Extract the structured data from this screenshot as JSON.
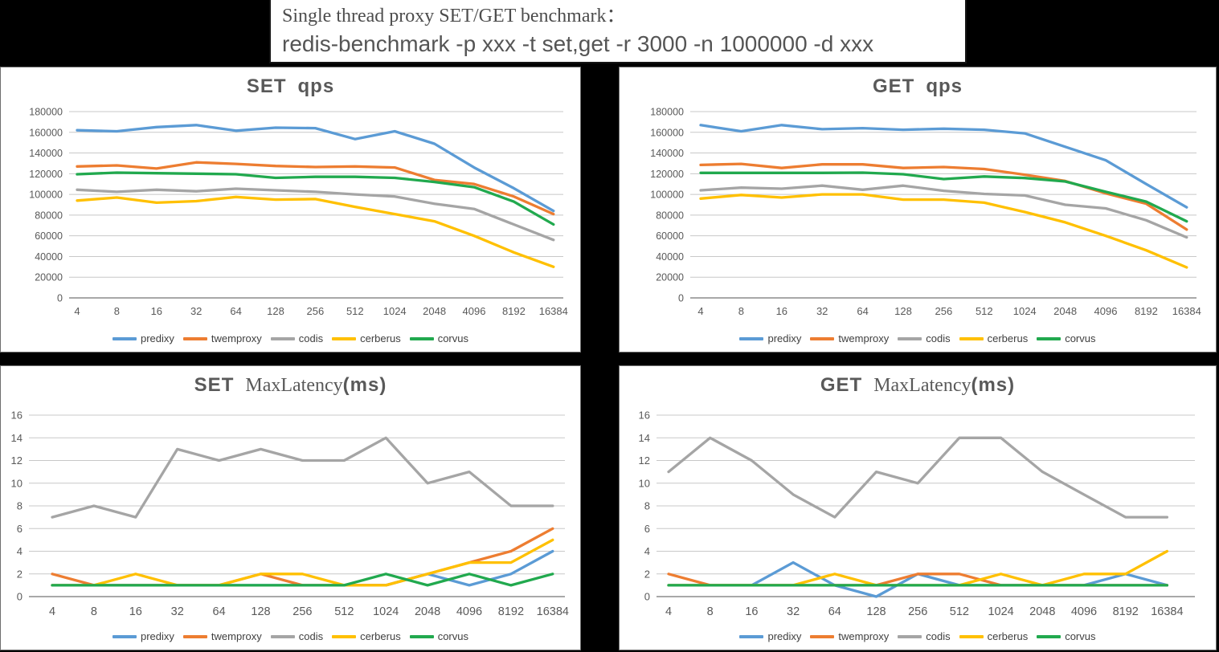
{
  "title_box": {
    "line1": "Single thread proxy SET/GET benchmark：",
    "line2": "redis-benchmark -p xxx -t set,get -r 3000 -n 1000000 -d xxx"
  },
  "colors": {
    "predixy": "#5B9BD5",
    "twemproxy": "#ED7D31",
    "codis": "#A5A5A5",
    "cerberus": "#FFC000",
    "corvus": "#21A94E",
    "grid": "#c8c8c8",
    "axis": "#8c8c8c",
    "label": "#595959"
  },
  "chart_data": [
    {
      "id": "set-qps",
      "type": "line",
      "title_prefix": "SET",
      "title_main": "qps",
      "title_main_serif": false,
      "title_suffix": "",
      "categories": [
        "4",
        "8",
        "16",
        "32",
        "64",
        "128",
        "256",
        "512",
        "1024",
        "2048",
        "4096",
        "8192",
        "16384"
      ],
      "ylim": [
        0,
        180000
      ],
      "ytick_step": 20000,
      "grid": true,
      "legend_position": "bottom",
      "series": [
        {
          "name": "predixy",
          "color": "#5B9BD5",
          "values": [
            162000,
            161000,
            165000,
            167000,
            161500,
            164500,
            164000,
            153500,
            161000,
            149000,
            126000,
            106000,
            84000
          ]
        },
        {
          "name": "twemproxy",
          "color": "#ED7D31",
          "values": [
            127000,
            128000,
            125000,
            131000,
            129500,
            127500,
            126500,
            127000,
            126000,
            114000,
            110000,
            98000,
            81000
          ]
        },
        {
          "name": "codis",
          "color": "#A5A5A5",
          "values": [
            104500,
            102500,
            104500,
            103000,
            105500,
            104000,
            102500,
            100000,
            98000,
            91000,
            86000,
            71000,
            56000
          ]
        },
        {
          "name": "cerberus",
          "color": "#FFC000",
          "values": [
            94000,
            97000,
            92000,
            93500,
            97500,
            95000,
            95500,
            88000,
            81000,
            74000,
            60000,
            44000,
            30000
          ]
        },
        {
          "name": "corvus",
          "color": "#21A94E",
          "values": [
            119500,
            121000,
            120500,
            120000,
            119500,
            116000,
            117000,
            117000,
            116000,
            112000,
            107000,
            93000,
            71000
          ]
        }
      ]
    },
    {
      "id": "get-qps",
      "type": "line",
      "title_prefix": "GET",
      "title_main": "qps",
      "title_main_serif": false,
      "title_suffix": "",
      "categories": [
        "4",
        "8",
        "16",
        "32",
        "64",
        "128",
        "256",
        "512",
        "1024",
        "2048",
        "4096",
        "8192",
        "16384"
      ],
      "ylim": [
        0,
        180000
      ],
      "ytick_step": 20000,
      "grid": true,
      "legend_position": "bottom",
      "series": [
        {
          "name": "predixy",
          "color": "#5B9BD5",
          "values": [
            167000,
            161000,
            167000,
            163000,
            164000,
            162500,
            163500,
            162500,
            159000,
            146000,
            133000,
            110000,
            87500
          ]
        },
        {
          "name": "twemproxy",
          "color": "#ED7D31",
          "values": [
            128500,
            129500,
            125500,
            129000,
            129000,
            125500,
            126500,
            124500,
            119000,
            113000,
            101000,
            91000,
            66000
          ]
        },
        {
          "name": "codis",
          "color": "#A5A5A5",
          "values": [
            104000,
            106500,
            105500,
            108500,
            104500,
            108500,
            103500,
            100500,
            99000,
            90000,
            86500,
            75000,
            58500
          ]
        },
        {
          "name": "cerberus",
          "color": "#FFC000",
          "values": [
            96000,
            99500,
            97000,
            100000,
            100000,
            95000,
            95000,
            92000,
            83000,
            73000,
            60000,
            46000,
            29500
          ]
        },
        {
          "name": "corvus",
          "color": "#21A94E",
          "values": [
            120800,
            120800,
            120800,
            120800,
            121000,
            119500,
            114800,
            117300,
            115800,
            112500,
            102500,
            93000,
            74000
          ]
        }
      ]
    },
    {
      "id": "set-latency",
      "type": "line",
      "title_prefix": "SET",
      "title_main": "MaxLatency",
      "title_main_serif": true,
      "title_suffix": "(ms)",
      "categories": [
        "4",
        "8",
        "16",
        "32",
        "64",
        "128",
        "256",
        "512",
        "1024",
        "2048",
        "4096",
        "8192",
        "16384"
      ],
      "ylim": [
        0,
        16
      ],
      "ytick_step": 2,
      "grid": true,
      "legend_position": "bottom",
      "series": [
        {
          "name": "predixy",
          "color": "#5B9BD5",
          "values": [
            1,
            1,
            1,
            1,
            1,
            1,
            1,
            1,
            1,
            2,
            1,
            2,
            4
          ]
        },
        {
          "name": "twemproxy",
          "color": "#ED7D31",
          "values": [
            2,
            1,
            1,
            1,
            1,
            2,
            1,
            1,
            1,
            2,
            3,
            4,
            6
          ]
        },
        {
          "name": "codis",
          "color": "#A5A5A5",
          "values": [
            7,
            8,
            7,
            13,
            12,
            13,
            12,
            12,
            14,
            10,
            11,
            8,
            8
          ]
        },
        {
          "name": "cerberus",
          "color": "#FFC000",
          "values": [
            1,
            1,
            2,
            1,
            1,
            2,
            2,
            1,
            1,
            2,
            3,
            3,
            5
          ]
        },
        {
          "name": "corvus",
          "color": "#21A94E",
          "values": [
            1,
            1,
            1,
            1,
            1,
            1,
            1,
            1,
            2,
            1,
            2,
            1,
            2
          ]
        }
      ]
    },
    {
      "id": "get-latency",
      "type": "line",
      "title_prefix": "GET",
      "title_main": "MaxLatency",
      "title_main_serif": true,
      "title_suffix": "(ms)",
      "categories": [
        "4",
        "8",
        "16",
        "32",
        "64",
        "128",
        "256",
        "512",
        "1024",
        "2048",
        "4096",
        "8192",
        "16384"
      ],
      "ylim": [
        0,
        16
      ],
      "ytick_step": 2,
      "grid": true,
      "legend_position": "bottom",
      "series": [
        {
          "name": "predixy",
          "color": "#5B9BD5",
          "values": [
            1,
            1,
            1,
            3,
            1,
            0,
            2,
            1,
            1,
            1,
            1,
            2,
            1
          ]
        },
        {
          "name": "twemproxy",
          "color": "#ED7D31",
          "values": [
            2,
            1,
            1,
            1,
            1,
            1,
            2,
            2,
            1,
            1,
            1,
            1,
            1
          ]
        },
        {
          "name": "codis",
          "color": "#A5A5A5",
          "values": [
            11,
            14,
            12,
            9,
            7,
            11,
            10,
            14,
            14,
            11,
            9,
            7,
            7
          ]
        },
        {
          "name": "cerberus",
          "color": "#FFC000",
          "values": [
            1,
            1,
            1,
            1,
            2,
            1,
            1,
            1,
            2,
            1,
            2,
            2,
            4
          ]
        },
        {
          "name": "corvus",
          "color": "#21A94E",
          "values": [
            1,
            1,
            1,
            1,
            1,
            1,
            1,
            1,
            1,
            1,
            1,
            1,
            1
          ]
        }
      ]
    }
  ]
}
